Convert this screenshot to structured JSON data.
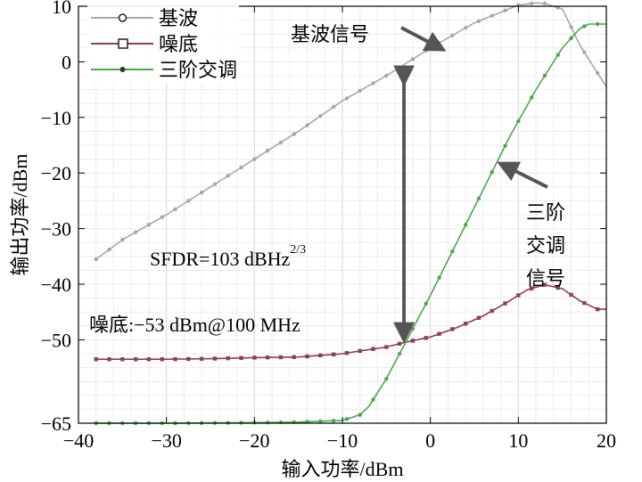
{
  "chart_data": {
    "type": "line",
    "xlabel": "输入功率/dBm",
    "ylabel": "输出功率/dBm",
    "xlim": [
      -40,
      20
    ],
    "ylim": [
      -65,
      10
    ],
    "xticks": [
      {
        "value": -40,
        "label": "−40"
      },
      {
        "value": -30,
        "label": "−30"
      },
      {
        "value": -20,
        "label": "−20"
      },
      {
        "value": -10,
        "label": "−10"
      },
      {
        "value": 0,
        "label": "0"
      },
      {
        "value": 10,
        "label": "10"
      },
      {
        "value": 20,
        "label": "20"
      }
    ],
    "yticks": [
      {
        "value": 10,
        "label": "10"
      },
      {
        "value": 0,
        "label": "0"
      },
      {
        "value": -10,
        "label": "−10"
      },
      {
        "value": -20,
        "label": "−20"
      },
      {
        "value": -30,
        "label": "−30"
      },
      {
        "value": -40,
        "label": "−40"
      },
      {
        "value": -50,
        "label": "−50"
      },
      {
        "value": -65,
        "label": "−65"
      }
    ],
    "grid": true,
    "legend_position": "top-left",
    "series": [
      {
        "name": "基波",
        "color": "#a8a8a8",
        "marker": "circle",
        "x": [
          -38,
          -35,
          -30,
          -25,
          -20,
          -15,
          -10,
          -5,
          0,
          5,
          10,
          12,
          13,
          15,
          17,
          19,
          20
        ],
        "y": [
          -35.5,
          -32,
          -27.5,
          -22.5,
          -17.5,
          -12.5,
          -7,
          -2.5,
          2.5,
          7,
          10.2,
          10.6,
          10.5,
          9.5,
          3,
          -2,
          -4.5
        ]
      },
      {
        "name": "噪底",
        "color": "#8e3e55",
        "marker": "square",
        "x": [
          -38,
          -35,
          -30,
          -25,
          -20,
          -15,
          -10,
          -8,
          -5,
          -3,
          0,
          3,
          6,
          9,
          11,
          13,
          15,
          17,
          19,
          20
        ],
        "y": [
          -53.5,
          -53.5,
          -53.5,
          -53.4,
          -53.2,
          -53.1,
          -52.5,
          -52,
          -51.3,
          -50.5,
          -49.5,
          -47.8,
          -45.7,
          -43,
          -41,
          -40.1,
          -40.8,
          -43,
          -44.5,
          -44.5
        ]
      },
      {
        "name": "三阶交调",
        "color": "#4aa84a",
        "marker": "star",
        "x": [
          -38,
          -30,
          -20,
          -15,
          -10,
          -8,
          -7,
          -5,
          -3,
          0,
          3,
          6,
          9,
          12,
          15,
          17,
          18,
          19,
          20
        ],
        "y": [
          -65,
          -65,
          -64.9,
          -64.8,
          -64.5,
          -63.5,
          -62,
          -57,
          -51,
          -42,
          -32.5,
          -23,
          -13.5,
          -5,
          2.5,
          6,
          6.8,
          6.8,
          6.8
        ]
      }
    ],
    "annotations": {
      "fundamental": "基波信号",
      "im3": [
        "三阶",
        "交调",
        "信号"
      ],
      "sfdr": "SFDR=103 dBHz",
      "sfdr_sup": "2/3",
      "noise": "噪底:−53 dBm@100 MHz",
      "arrow_x": -3,
      "arrow_top": 0,
      "arrow_bottom": -51
    }
  }
}
